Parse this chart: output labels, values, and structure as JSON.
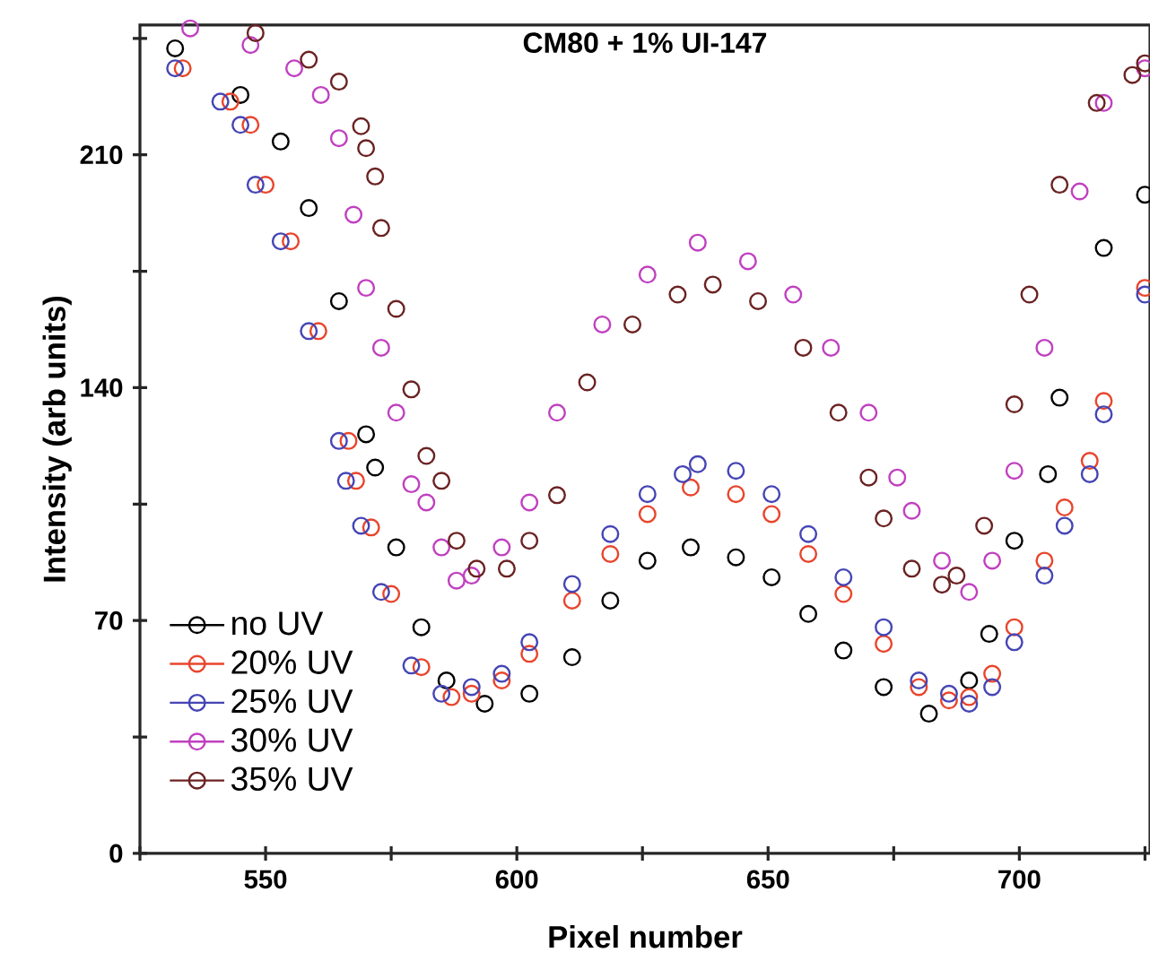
{
  "chart_data": {
    "type": "scatter",
    "title": "CM80 + 1% UI-147",
    "xlabel": "Pixel number",
    "ylabel": "Intensity (arb units)",
    "xlim": [
      525,
      726
    ],
    "ylim": [
      0,
      249
    ],
    "xticks": [
      {
        "value": 525,
        "label": null
      },
      550,
      {
        "value": 575,
        "label": null
      },
      600,
      {
        "value": 625,
        "label": null
      },
      650,
      {
        "value": 675,
        "label": null
      },
      700,
      {
        "value": 725,
        "label": null
      }
    ],
    "yticks": [
      0,
      {
        "value": 35,
        "label": null
      },
      70,
      {
        "value": 105,
        "label": null
      },
      140,
      {
        "value": 175,
        "label": null
      },
      210,
      {
        "value": 245,
        "label": null
      }
    ],
    "marker": "circle",
    "legend": "bottom left",
    "grid": false,
    "series": [
      {
        "name": "no UV",
        "color": "#000000",
        "x": [
          532,
          545,
          553,
          558.6,
          564.6,
          570,
          571.8,
          576,
          581,
          586,
          593.6,
          602.5,
          611,
          618.6,
          626,
          634.6,
          643.6,
          650.7,
          658,
          665,
          673,
          682,
          690,
          694,
          699,
          705.7,
          708,
          716.8,
          725
        ],
        "values": [
          242,
          228,
          214,
          194,
          166,
          126,
          116,
          92,
          68,
          52,
          45,
          48,
          59,
          76,
          88,
          92,
          89,
          83,
          72,
          61,
          50,
          42,
          52,
          66,
          94,
          114,
          137,
          182,
          198
        ]
      },
      {
        "name": "20% UV",
        "color": "#e8452c",
        "x": [
          533.5,
          543,
          547,
          550,
          555,
          560.5,
          566.5,
          568,
          571,
          575,
          581,
          587,
          591,
          597,
          602.5,
          611,
          618.6,
          626,
          634.6,
          643.6,
          650.7,
          658,
          665,
          673,
          680,
          686,
          690,
          694.6,
          699,
          705,
          709,
          714,
          716.8,
          725
        ],
        "values": [
          236,
          226,
          219,
          201,
          184,
          157,
          124,
          112,
          98,
          78,
          56,
          47,
          48,
          52,
          60,
          76,
          90,
          102,
          110,
          108,
          102,
          90,
          78,
          63,
          50,
          46,
          47,
          54,
          68,
          88,
          104,
          118,
          136,
          170
        ]
      },
      {
        "name": "25% UV",
        "color": "#4545b5",
        "x": [
          532,
          541,
          545,
          548,
          553,
          558.6,
          564.6,
          566,
          569,
          573,
          579,
          585,
          591,
          597,
          602.5,
          611,
          618.6,
          626,
          633,
          636,
          643.6,
          650.7,
          658,
          665,
          673,
          680,
          686,
          690,
          694.6,
          699,
          705,
          709,
          714,
          716.8,
          725
        ],
        "values": [
          236,
          226,
          219,
          201,
          184,
          157,
          124,
          112,
          98.5,
          78.6,
          56.5,
          48,
          50,
          54,
          63.5,
          81,
          96,
          108,
          114,
          117,
          115,
          108,
          96,
          83,
          68,
          52,
          48,
          45,
          50,
          63.5,
          83.5,
          98.5,
          114,
          132,
          168
        ]
      },
      {
        "name": "30% UV",
        "color": "#c040c0",
        "x": [
          535,
          547,
          555.7,
          561,
          564.6,
          567.5,
          570,
          573,
          576,
          579,
          582,
          585,
          588,
          591,
          597,
          602.5,
          608,
          617,
          626,
          636,
          646,
          655,
          662.5,
          670,
          675.7,
          678.6,
          684.6,
          690,
          694.6,
          699,
          705,
          712,
          716.8,
          725
        ],
        "values": [
          248,
          243,
          236,
          228,
          215,
          192,
          170,
          152,
          132.5,
          111,
          105.5,
          92,
          82,
          83.5,
          92,
          105.5,
          132.5,
          159,
          174,
          183.6,
          178,
          168,
          152,
          132.5,
          113,
          103,
          88,
          78.6,
          88,
          115,
          152,
          199,
          225.6,
          236
        ]
      },
      {
        "name": "35% UV",
        "color": "#6b2222",
        "x": [
          548,
          558.6,
          564.6,
          569,
          570,
          571.8,
          573,
          576,
          579,
          582,
          585,
          588,
          592,
          598,
          602.5,
          608,
          614,
          623,
          632,
          639,
          648,
          657,
          664,
          670,
          673,
          678.6,
          684.6,
          687.5,
          693,
          699,
          702,
          708,
          715.4,
          722.5,
          725
        ],
        "values": [
          246.6,
          238.6,
          232,
          218.6,
          212,
          203.5,
          188,
          163.7,
          139.5,
          119.5,
          112,
          94,
          85.6,
          85.6,
          94,
          107.7,
          141.6,
          159,
          168,
          171,
          166,
          152,
          132.5,
          113,
          100.7,
          85.6,
          80.8,
          83.5,
          98.5,
          135,
          168,
          201,
          225.6,
          234,
          237.5
        ]
      }
    ]
  }
}
